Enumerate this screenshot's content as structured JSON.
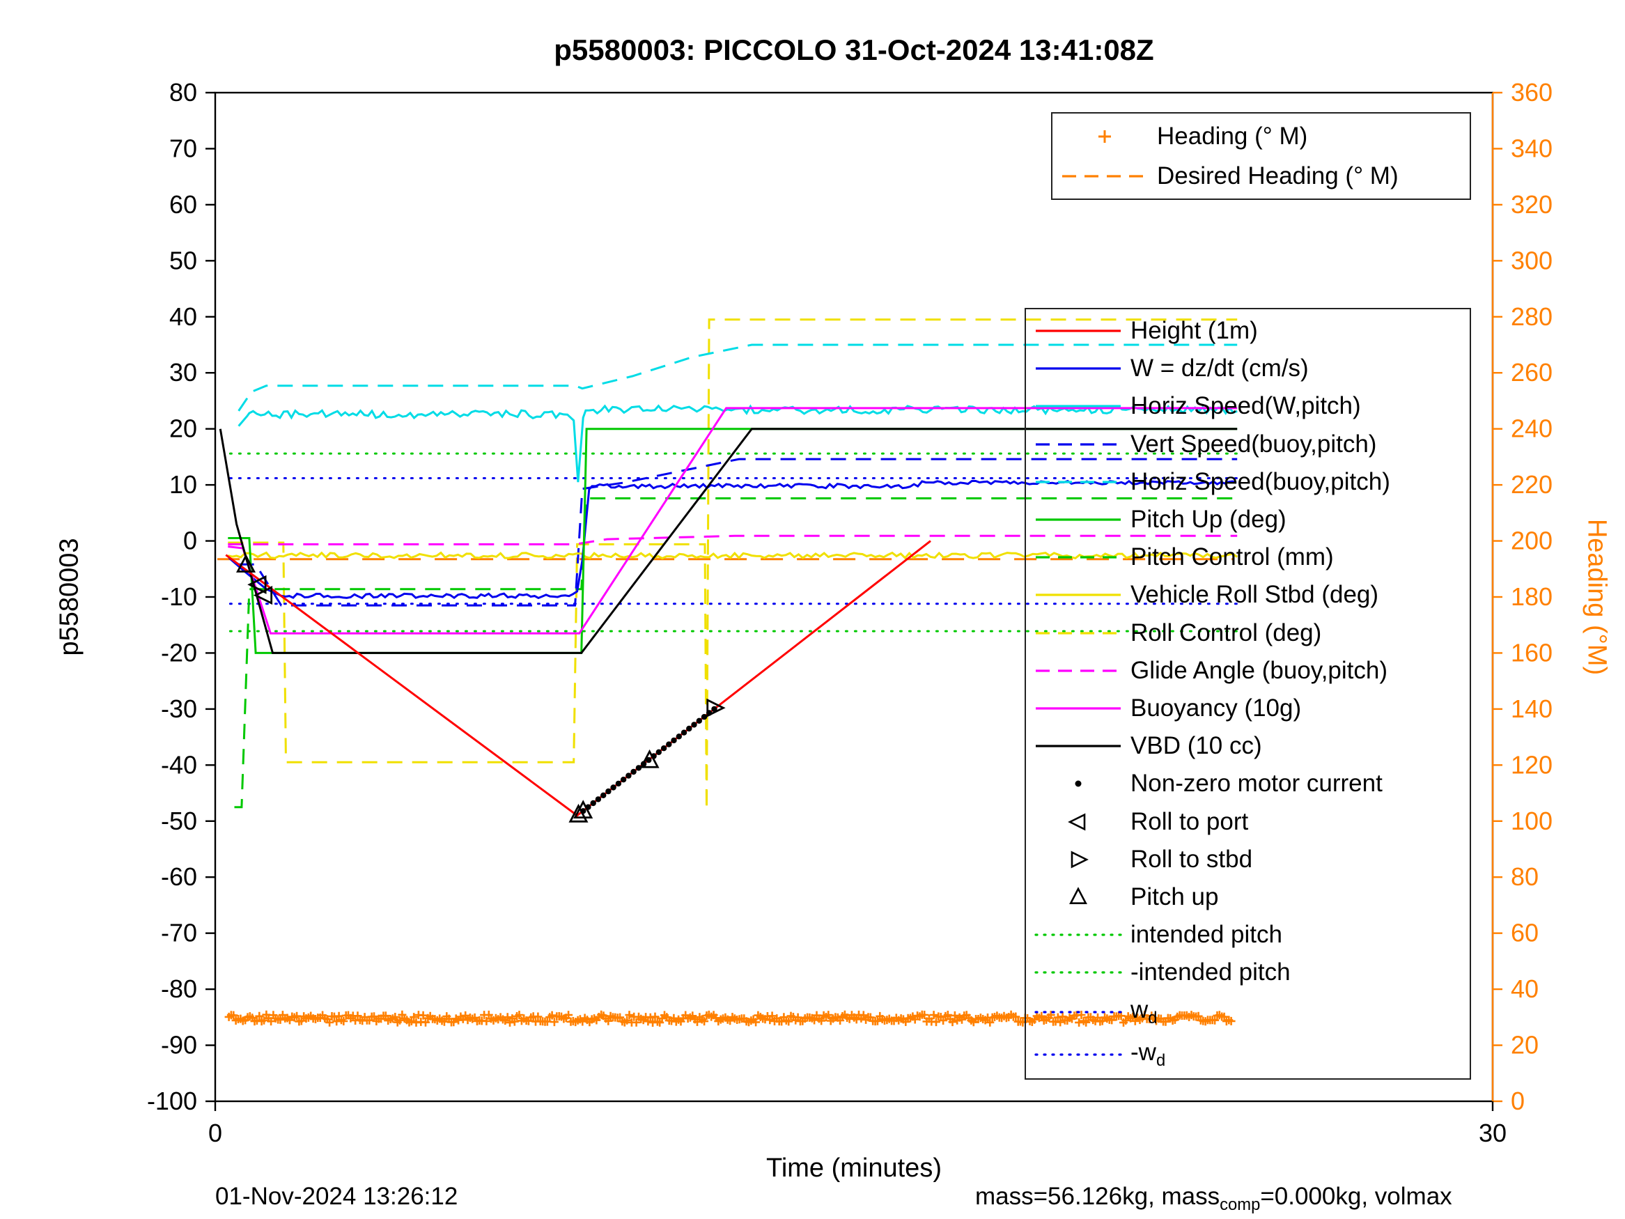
{
  "figure": {
    "title": "p5580003: PICCOLO 31-Oct-2024 13:41:08Z",
    "xlabel": "Time (minutes)",
    "ylabel_left": "p5580003",
    "ylabel_right": "Heading (°M)",
    "footer_left": "01-Nov-2024 13:26:12",
    "footer_right_parts": [
      {
        "t": "mass=56.126kg, mass"
      },
      {
        "t": "comp",
        "sub": true
      },
      {
        "t": "=0.000kg, volmax"
      }
    ]
  },
  "chart_data": {
    "type": "line",
    "title": "p5580003: PICCOLO 31-Oct-2024 13:41:08Z",
    "x_axis": {
      "label": "Time (minutes)",
      "range": [
        0,
        30
      ],
      "ticks": [
        0,
        30
      ]
    },
    "y_axis_left": {
      "label": "p5580003",
      "range": [
        -100,
        80
      ],
      "tick_step": 10,
      "color": "#000000"
    },
    "y_axis_right": {
      "label": "Heading (°M)",
      "range": [
        0,
        360
      ],
      "tick_step": 20,
      "color": "#ff8000"
    },
    "grid": false,
    "series": [
      {
        "name": "intended pitch",
        "color": "#00c800",
        "dash": "dot",
        "parts": [
          {
            "poly": [
              [
                0.35,
                15.6
              ],
              [
                24,
                15.6
              ]
            ]
          }
        ]
      },
      {
        "name": "-intended pitch",
        "color": "#00c800",
        "dash": "dot",
        "parts": [
          {
            "poly": [
              [
                0.35,
                -16.1
              ],
              [
                24,
                -16.1
              ]
            ]
          }
        ]
      },
      {
        "name": "w_d",
        "color": "#0000ee",
        "dash": "dot",
        "parts": [
          {
            "poly": [
              [
                0.35,
                11.2
              ],
              [
                24,
                11.2
              ]
            ]
          }
        ]
      },
      {
        "name": "-w_d",
        "color": "#0000ee",
        "dash": "dot",
        "parts": [
          {
            "poly": [
              [
                0.35,
                -11.2
              ],
              [
                24,
                -11.2
              ]
            ]
          }
        ]
      },
      {
        "name": "Desired Heading (° M)",
        "color": "#ff8000",
        "dash": "dash",
        "dash_size": "32 20",
        "axis": "right",
        "parts": [
          {
            "poly": [
              [
                0.05,
                193.5
              ],
              [
                23.9,
                193.5
              ]
            ]
          }
        ]
      },
      {
        "name": "Roll Control (deg)",
        "color": "#f0e000",
        "dash": "dash",
        "parts": [
          {
            "poly": [
              [
                0.3,
                -0.3
              ],
              [
                1.6,
                -0.3
              ],
              [
                1.66,
                -39.5
              ],
              [
                8.42,
                -39.5
              ],
              [
                8.5,
                -0.6
              ],
              [
                11.5,
                -0.6
              ],
              [
                11.54,
                -48
              ],
              [
                11.6,
                39.5
              ],
              [
                24,
                39.5
              ]
            ]
          }
        ]
      },
      {
        "name": "Pitch Control (mm)",
        "color": "#00c800",
        "dash": "dash",
        "parts": [
          {
            "poly": [
              [
                0.45,
                -47.5
              ],
              [
                0.62,
                -47.5
              ],
              [
                0.8,
                -8.6
              ],
              [
                8.6,
                -8.6
              ],
              [
                8.72,
                7.6
              ],
              [
                24,
                7.6
              ]
            ]
          }
        ]
      },
      {
        "name": "Vert Speed(buoy,pitch)",
        "color": "#0000ee",
        "dash": "dash",
        "parts": [
          {
            "poly": [
              [
                0.55,
                -4.2
              ],
              [
                0.95,
                -4.2
              ],
              [
                1.55,
                -11.5
              ],
              [
                8.45,
                -11.5
              ],
              [
                8.62,
                9.3
              ],
              [
                9.6,
                10.4
              ],
              [
                12.3,
                14.6
              ],
              [
                24,
                14.6
              ]
            ]
          }
        ]
      },
      {
        "name": "Horiz Speed(buoy,pitch)",
        "color": "#00dce6",
        "dash": "dash",
        "parts": [
          {
            "poly": [
              [
                0.55,
                23.2
              ],
              [
                0.85,
                26.6
              ],
              [
                1.2,
                27.7
              ],
              [
                8.45,
                27.7
              ],
              [
                8.62,
                27.2
              ],
              [
                9.8,
                29.4
              ],
              [
                11.2,
                32.8
              ],
              [
                12.6,
                35
              ],
              [
                24,
                35
              ]
            ]
          }
        ]
      },
      {
        "name": "Glide Angle (buoy,pitch)",
        "color": "#ff00ff",
        "dash": "dash",
        "parts": [
          {
            "poly": [
              [
                0.3,
                -0.6
              ],
              [
                8.45,
                -0.6
              ],
              [
                9.2,
                0.3
              ],
              [
                12.2,
                0.9
              ],
              [
                24,
                0.9
              ]
            ]
          }
        ]
      },
      {
        "name": "Vehicle Roll Stbd (deg)",
        "color": "#f0e000",
        "dash": "solid",
        "parts": [
          {
            "noise": {
              "x0": 0.3,
              "x1": 24,
              "step": 0.1,
              "base": -2.6,
              "amp": 0.5
            }
          }
        ]
      },
      {
        "name": "Horiz Speed(W,pitch)",
        "color": "#00dce6",
        "dash": "solid",
        "parts": [
          {
            "poly": [
              [
                0.55,
                20.5
              ],
              [
                0.75,
                22.3
              ]
            ]
          },
          {
            "noise": {
              "x0": 0.8,
              "x1": 8.35,
              "step": 0.09,
              "base": 22.6,
              "amp": 0.7
            }
          },
          {
            "poly": [
              [
                8.42,
                21.5
              ],
              [
                8.52,
                10.5
              ],
              [
                8.64,
                22
              ]
            ]
          },
          {
            "noise": {
              "x0": 8.7,
              "x1": 24,
              "step": 0.09,
              "base": 23.4,
              "amp": 0.7
            }
          }
        ]
      },
      {
        "name": "W = dz/dt (cm/s)",
        "color": "#0000ee",
        "dash": "solid",
        "parts": [
          {
            "poly": [
              [
                0.32,
                -3
              ],
              [
                0.7,
                -5.5
              ],
              [
                1.2,
                -8.6
              ],
              [
                1.55,
                -9.8
              ]
            ]
          },
          {
            "noise": {
              "x0": 1.65,
              "x1": 8.4,
              "step": 0.09,
              "base": -9.8,
              "amp": 0.4
            }
          },
          {
            "poly": [
              [
                8.5,
                -9
              ],
              [
                8.62,
                -3.5
              ],
              [
                8.78,
                9.2
              ]
            ]
          },
          {
            "noise": {
              "x0": 8.85,
              "x1": 16.55,
              "step": 0.09,
              "base": 9.8,
              "amp": 0.4
            }
          },
          {
            "noise": {
              "x0": 16.6,
              "x1": 24,
              "step": 0.09,
              "base": 10.4,
              "amp": 0.3
            }
          }
        ]
      },
      {
        "name": "Pitch Up (deg)",
        "color": "#00c800",
        "dash": "solid",
        "parts": [
          {
            "poly": [
              [
                0.3,
                0.5
              ],
              [
                0.8,
                0.5
              ],
              [
                0.95,
                -20
              ],
              [
                8.6,
                -20
              ],
              [
                8.72,
                20
              ],
              [
                24,
                20
              ]
            ]
          }
        ]
      },
      {
        "name": "Buoyancy (10g)",
        "color": "#ff00ff",
        "dash": "solid",
        "parts": [
          {
            "poly": [
              [
                0.3,
                -1
              ],
              [
                0.65,
                -1.3
              ],
              [
                1.3,
                -16.5
              ],
              [
                8.55,
                -16.5
              ],
              [
                12.0,
                23.7
              ],
              [
                24,
                23.7
              ]
            ]
          }
        ]
      },
      {
        "name": "VBD (10 cc)",
        "color": "#000000",
        "dash": "solid",
        "parts": [
          {
            "poly": [
              [
                0.12,
                20
              ],
              [
                0.5,
                3
              ],
              [
                0.8,
                -5
              ],
              [
                1.35,
                -20
              ],
              [
                8.6,
                -20
              ],
              [
                12.6,
                20
              ],
              [
                24,
                20
              ]
            ]
          }
        ]
      },
      {
        "name": "Height (1m)",
        "color": "#ff0000",
        "dash": "solid",
        "parts": [
          {
            "poly": [
              [
                0.25,
                -2.5
              ],
              [
                8.5,
                -49
              ],
              [
                16.8,
                0
              ]
            ]
          }
        ]
      }
    ],
    "markers": {
      "heading": {
        "name": "Heading (° M)",
        "marker": "plus",
        "color": "#ff8000",
        "axis": "right",
        "noise": {
          "x0": 0.32,
          "x1": 23.9,
          "step": 0.055,
          "base": 29.5,
          "amp": 1.4
        }
      },
      "motor_current": {
        "name": "Non-zero motor current",
        "marker": "dot",
        "color": "#000000",
        "from": [
          8.64,
          -48.2
        ],
        "to": [
          11.72,
          -30.0
        ],
        "step": 0.12
      },
      "events": [
        {
          "name": "Pitch up",
          "marker": "tri-up",
          "color": "#000000",
          "pts": [
            [
              0.72,
              -4.3
            ],
            [
              8.53,
              -48.9
            ],
            [
              8.64,
              -48.2
            ],
            [
              10.2,
              -39.2
            ]
          ]
        },
        {
          "name": "Roll to port",
          "marker": "tri-left",
          "color": "#000000",
          "pts": [
            [
              1.02,
              -7.8
            ],
            [
              1.16,
              -9.7
            ]
          ]
        },
        {
          "name": "Roll to stbd",
          "marker": "tri-right",
          "color": "#000000",
          "pts": [
            [
              11.72,
              -29.8
            ]
          ]
        }
      ]
    },
    "legend_heading": {
      "items": [
        {
          "label": "Heading (° M)",
          "sample": {
            "kind": "marker",
            "marker": "plus",
            "color": "#ff8000"
          }
        },
        {
          "label": "Desired Heading (° M)",
          "sample": {
            "kind": "line",
            "dash": "dash",
            "color": "#ff8000"
          }
        }
      ]
    },
    "legend_main": {
      "items": [
        {
          "label": "Height (1m)",
          "sample": {
            "kind": "line",
            "dash": "solid",
            "color": "#ff0000"
          }
        },
        {
          "label": "W = dz/dt (cm/s)",
          "sample": {
            "kind": "line",
            "dash": "solid",
            "color": "#0000ee"
          }
        },
        {
          "label": "Horiz Speed(W,pitch)",
          "sample": {
            "kind": "line",
            "dash": "solid",
            "color": "#00dce6"
          }
        },
        {
          "label": "Vert Speed(buoy,pitch)",
          "sample": {
            "kind": "line",
            "dash": "dash",
            "color": "#0000ee"
          }
        },
        {
          "label": "Horiz Speed(buoy,pitch)",
          "sample": {
            "kind": "line",
            "dash": "dash",
            "color": "#00dce6"
          }
        },
        {
          "label": "Pitch Up (deg)",
          "sample": {
            "kind": "line",
            "dash": "solid",
            "color": "#00c800"
          }
        },
        {
          "label": "Pitch Control (mm)",
          "sample": {
            "kind": "line",
            "dash": "dash",
            "color": "#00c800"
          }
        },
        {
          "label": "Vehicle Roll Stbd (deg)",
          "sample": {
            "kind": "line",
            "dash": "solid",
            "color": "#f0e000"
          }
        },
        {
          "label": "Roll Control (deg)",
          "sample": {
            "kind": "line",
            "dash": "dash",
            "color": "#f0e000"
          }
        },
        {
          "label": "Glide Angle (buoy,pitch)",
          "sample": {
            "kind": "line",
            "dash": "dash",
            "color": "#ff00ff"
          }
        },
        {
          "label": "Buoyancy (10g)",
          "sample": {
            "kind": "line",
            "dash": "solid",
            "color": "#ff00ff"
          }
        },
        {
          "label": "VBD (10 cc)",
          "sample": {
            "kind": "line",
            "dash": "solid",
            "color": "#000000"
          }
        },
        {
          "label": "Non-zero motor current",
          "sample": {
            "kind": "marker",
            "marker": "dot",
            "color": "#000000"
          }
        },
        {
          "label": "Roll to port",
          "sample": {
            "kind": "marker",
            "marker": "tri-left",
            "color": "#000000"
          }
        },
        {
          "label": "Roll to stbd",
          "sample": {
            "kind": "marker",
            "marker": "tri-right",
            "color": "#000000"
          }
        },
        {
          "label": "Pitch up",
          "sample": {
            "kind": "marker",
            "marker": "tri-up",
            "color": "#000000"
          }
        },
        {
          "label": "intended pitch",
          "sample": {
            "kind": "line",
            "dash": "dot",
            "color": "#00c800"
          }
        },
        {
          "label": "-intended pitch",
          "sample": {
            "kind": "line",
            "dash": "dot",
            "color": "#00c800"
          }
        },
        {
          "label": "w",
          "sub": "d",
          "sample": {
            "kind": "line",
            "dash": "dot",
            "color": "#0000ee"
          }
        },
        {
          "label": "-w",
          "sub": "d",
          "sample": {
            "kind": "line",
            "dash": "dot",
            "color": "#0000ee"
          }
        }
      ]
    }
  }
}
